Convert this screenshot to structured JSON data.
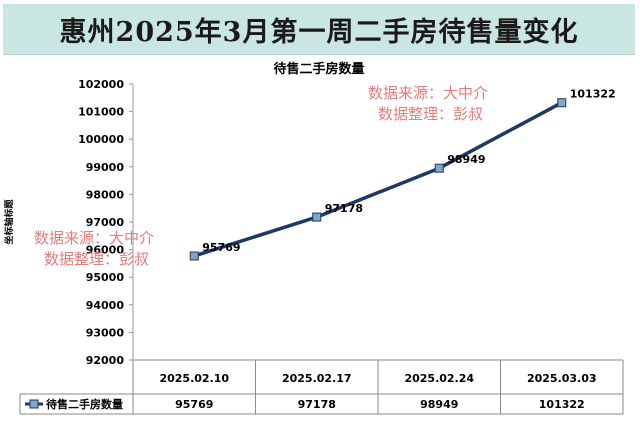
{
  "banner": {
    "title": "惠州2025年3月第一周二手房待售量变化"
  },
  "watermarks": [
    {
      "line1": "数据来源：大中介",
      "line2": "数据整理：彭叔"
    },
    {
      "line1": "数据来源：大中介",
      "line2": "数据整理：彭叔"
    }
  ],
  "colors": {
    "banner_bg": "#c9e6e3",
    "series_line": "#1f3864",
    "marker_fill": "#7fa7c9",
    "watermark": "#e06666"
  },
  "chart_data": {
    "type": "line",
    "title": "待售二手房数量",
    "ylabel": "坐标轴标题",
    "xlabel": "",
    "categories": [
      "2025.02.10",
      "2025.02.17",
      "2025.02.24",
      "2025.03.03"
    ],
    "series": [
      {
        "name": "待售二手房数量",
        "values": [
          95769,
          97178,
          98949,
          101322
        ]
      }
    ],
    "data_labels": [
      "95769",
      "97178",
      "98949",
      "101322"
    ],
    "ylim": [
      92000,
      102000
    ],
    "yticks": [
      92000,
      93000,
      94000,
      95000,
      96000,
      97000,
      98000,
      99000,
      100000,
      101000,
      102000
    ],
    "ytick_labels": [
      "92000",
      "93000",
      "94000",
      "95000",
      "96000",
      "97000",
      "98000",
      "99000",
      "100000",
      "101000",
      "102000"
    ],
    "grid": false,
    "legend": "data-table",
    "data_table": true
  }
}
